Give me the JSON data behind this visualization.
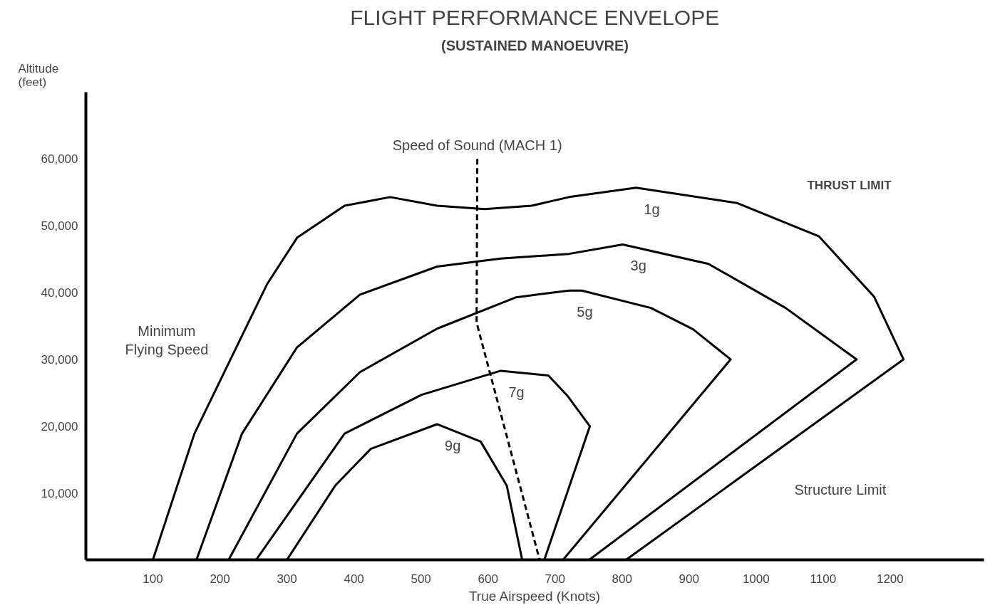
{
  "chart_data": {
    "type": "line",
    "title": "FLIGHT PERFORMANCE ENVELOPE",
    "subtitle": "(SUSTAINED MANOEUVRE)",
    "xlabel": "True Airspeed (Knots)",
    "ylabel": "Altitude (feet)",
    "xlim": [
      0,
      1340
    ],
    "ylim": [
      0,
      70000
    ],
    "xticks": [
      100,
      200,
      300,
      400,
      500,
      600,
      700,
      800,
      900,
      1000,
      1100,
      1200
    ],
    "yticks": [
      {
        "value": 10000,
        "label": "10,000"
      },
      {
        "value": 20000,
        "label": "20,000"
      },
      {
        "value": 30000,
        "label": "30,000"
      },
      {
        "value": 40000,
        "label": "40,000"
      },
      {
        "value": 50000,
        "label": "50,000"
      },
      {
        "value": 60000,
        "label": "60,000"
      }
    ],
    "grid": false,
    "marker": "none",
    "line_style": "solid",
    "series": [
      {
        "name": "1g",
        "color": "#000000",
        "x": [
          100,
          162,
          270,
          315,
          386,
          454,
          524,
          595,
          665,
          721,
          821,
          972,
          1094,
          1176,
          1220,
          806
        ],
        "values": [
          0,
          18900,
          41200,
          48200,
          53000,
          54300,
          53000,
          52500,
          53000,
          54300,
          55700,
          53400,
          48400,
          39400,
          30000,
          0
        ]
      },
      {
        "name": "3g",
        "color": "#000000",
        "x": [
          165,
          233,
          315,
          409,
          524,
          619,
          721,
          801,
          929,
          1044,
          1150,
          751
        ],
        "values": [
          0,
          18900,
          31800,
          39700,
          43900,
          45100,
          45800,
          47200,
          44300,
          37700,
          30000,
          0
        ]
      },
      {
        "name": "5g",
        "color": "#000000",
        "x": [
          213,
          315,
          409,
          524,
          642,
          721,
          740,
          843,
          906,
          962,
          712
        ],
        "values": [
          0,
          18900,
          28100,
          34600,
          39300,
          40300,
          40300,
          37700,
          34500,
          30000,
          0
        ]
      },
      {
        "name": "7g",
        "color": "#000000",
        "x": [
          254,
          386,
          501,
          619,
          690,
          719,
          752,
          684
        ],
        "values": [
          0,
          18900,
          24700,
          28300,
          27600,
          24500,
          20000,
          0
        ]
      },
      {
        "name": "9g",
        "color": "#000000",
        "x": [
          300,
          372,
          425,
          524,
          589,
          628,
          651
        ],
        "values": [
          0,
          11100,
          16600,
          20300,
          17700,
          11100,
          0
        ]
      },
      {
        "name": "Speed of Sound (MACH 1)",
        "color": "#000000",
        "line_style": "dashed",
        "x": [
          584,
          583,
          677
        ],
        "values": [
          60000,
          35500,
          0
        ]
      }
    ],
    "annotations": [
      "THRUST LIMIT",
      "Minimum\nFlying Speed",
      "Structure Limit"
    ]
  }
}
